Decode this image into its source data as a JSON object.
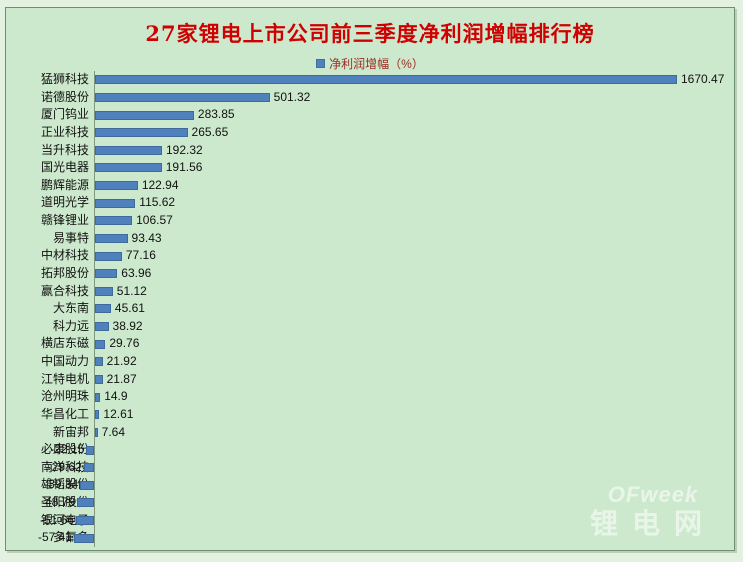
{
  "chart": {
    "title": "27家锂电上市公司前三季度净利润增幅排行榜",
    "legend_label": "净利润增幅（%）",
    "watermark": {
      "brand": "OFweek",
      "site_name": "锂电网"
    },
    "colors": {
      "bar": "#4f81bd",
      "bar_border": "#3f6a9c",
      "title": "#cf0000",
      "plot_background": "#cde9cd",
      "page_background": "#e3f1e1",
      "frame_border": "#6f8f72",
      "axis_line": "#7f977f",
      "label_text": "#111111"
    }
  },
  "chart_data": {
    "type": "bar",
    "orientation": "horizontal",
    "title": "27家锂电上市公司前三季度净利润增幅排行榜",
    "legend": [
      "净利润增幅（%）"
    ],
    "legend_position": "top-center",
    "grid": false,
    "xlim": [
      -80,
      1750
    ],
    "categories": [
      "猛狮科技",
      "诺德股份",
      "厦门钨业",
      "正业科技",
      "当升科技",
      "国光电器",
      "鹏辉能源",
      "道明光学",
      "赣锋锂业",
      "易事特",
      "中材科技",
      "拓邦股份",
      "赢合科技",
      "大东南",
      "科力远",
      "横店东磁",
      "中国动力",
      "江特电机",
      "沧州明珠",
      "华昌化工",
      "新宙邦",
      "必康股份",
      "南洋科技",
      "雄韬股份",
      "圣阳股份",
      "银河电子",
      "多氟多"
    ],
    "values": [
      1670.47,
      501.32,
      283.85,
      265.65,
      192.32,
      191.56,
      122.94,
      115.62,
      106.57,
      93.43,
      77.16,
      63.96,
      51.12,
      45.61,
      38.92,
      29.76,
      21.92,
      21.87,
      14.9,
      12.61,
      7.64,
      -22.15,
      -29.62,
      -39.34,
      -48.79,
      -51.66,
      -57.41
    ],
    "value_labels": [
      "1670.47",
      "501.32",
      "283.85",
      "265.65",
      "192.32",
      "191.56",
      "122.94",
      "115.62",
      "106.57",
      "93.43",
      "77.16",
      "63.96",
      "51.12",
      "45.61",
      "38.92",
      "29.76",
      "21.92",
      "21.87",
      "14.9",
      "12.61",
      "7.64",
      "-22.15",
      "-29.62",
      "-39.34",
      "-48.79",
      "-51.66",
      "-57.41"
    ],
    "ylabel": "",
    "xlabel": ""
  }
}
